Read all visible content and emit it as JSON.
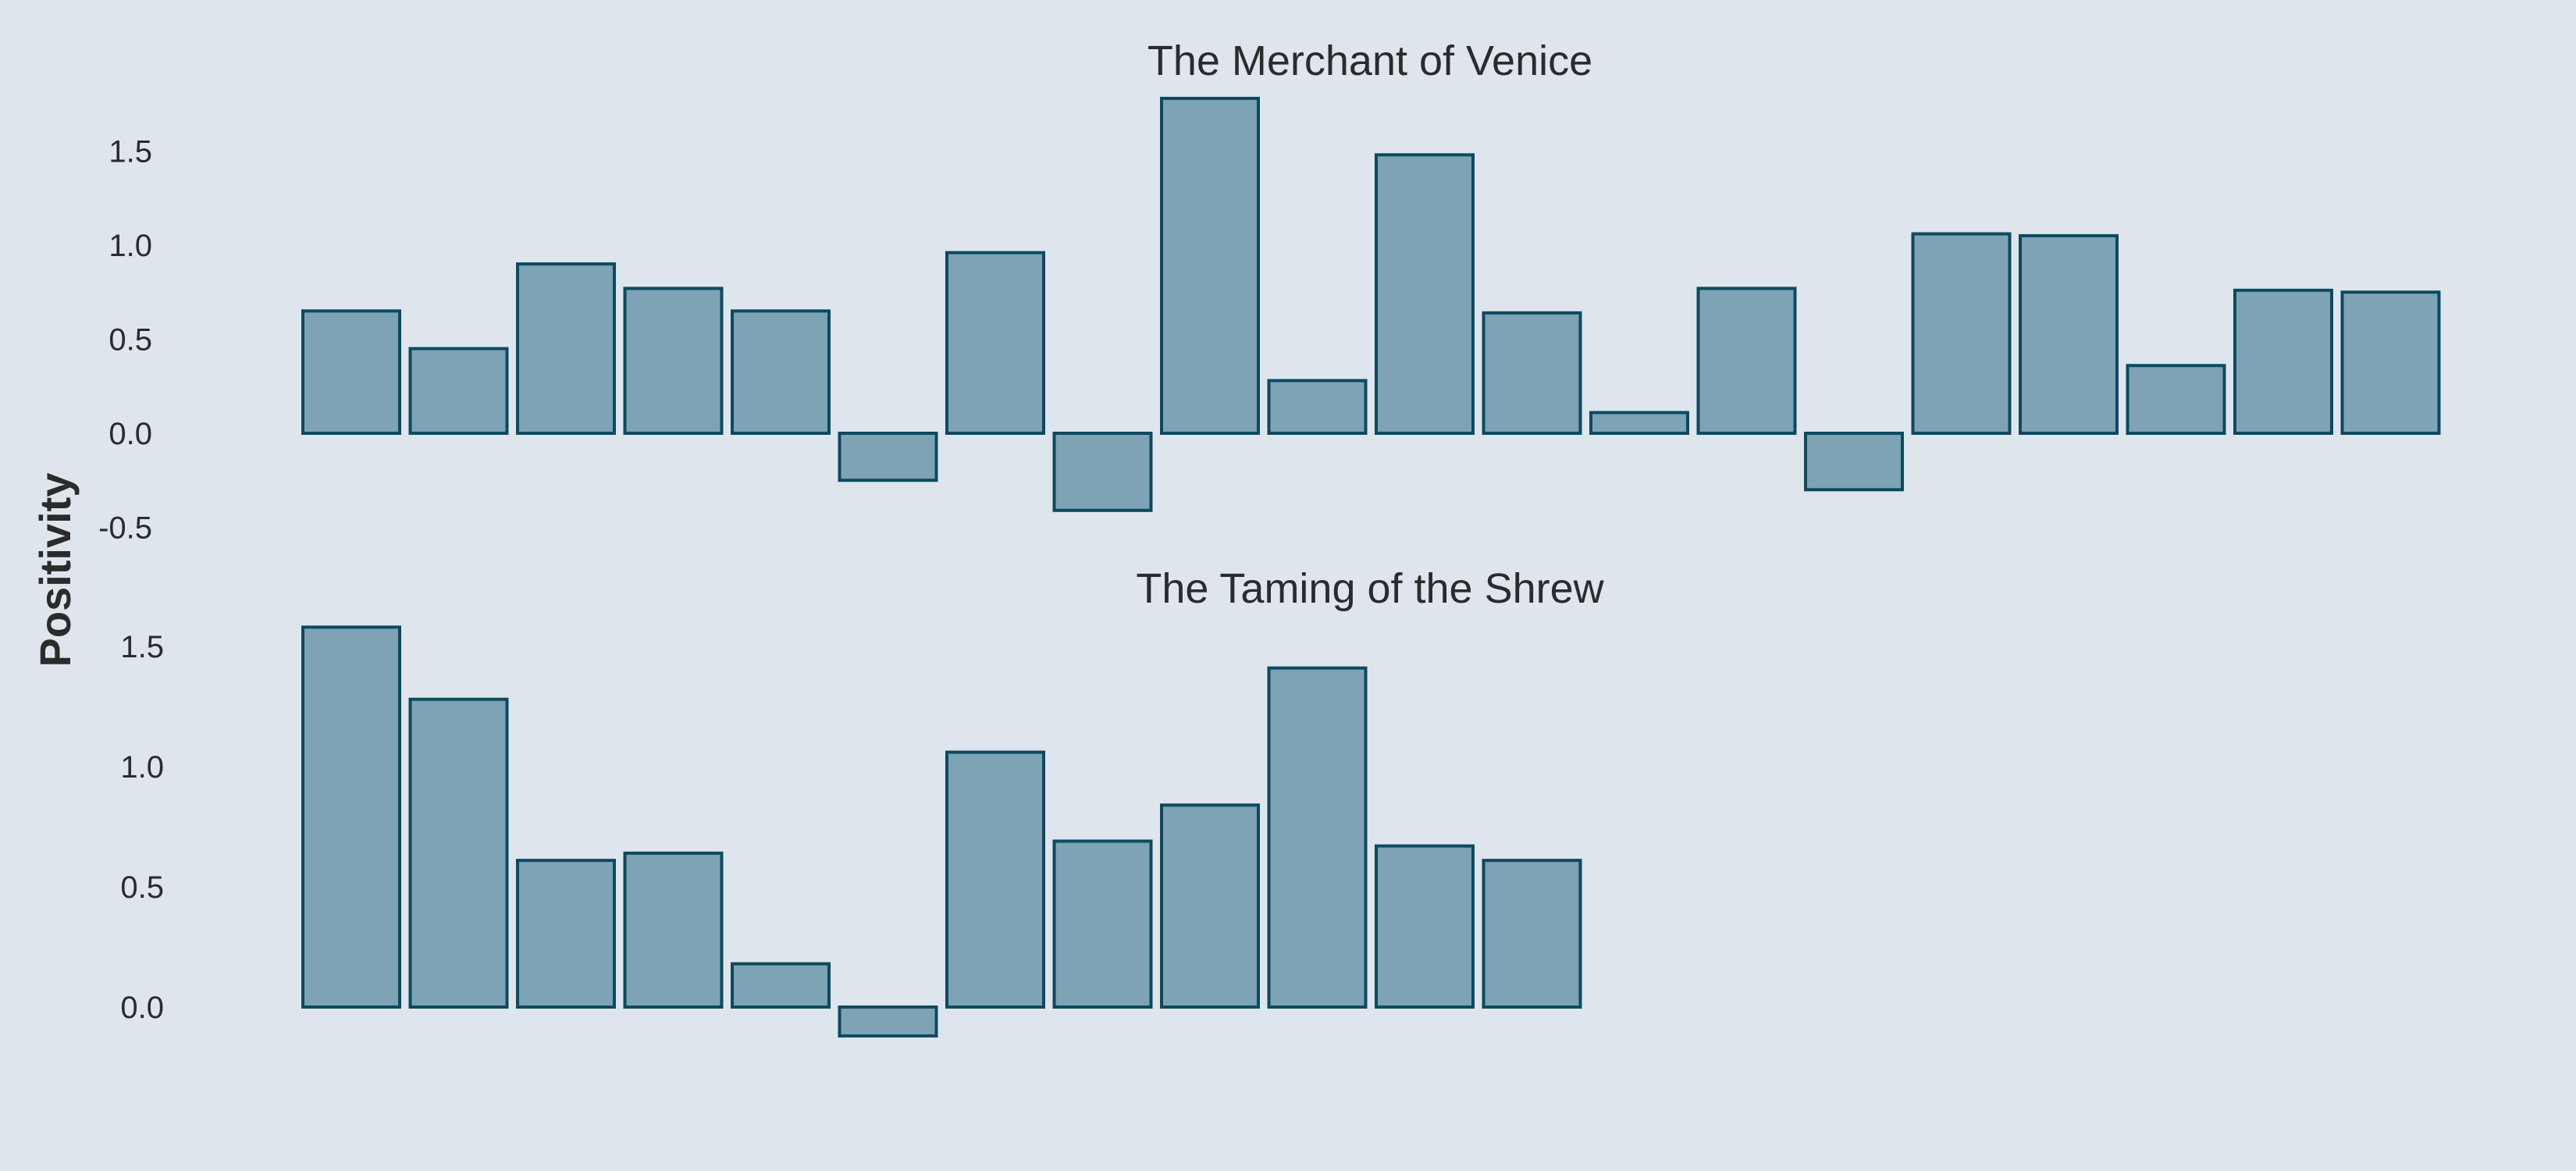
{
  "colors": {
    "background": "#dfe5ec",
    "bar_fill": "#7da3b4",
    "bar_edge": "#0c4a60",
    "text": "#2b2b2b"
  },
  "ylabel": "Positivity",
  "chart_data": [
    {
      "type": "bar",
      "title": "The Merchant of Venice",
      "ylabel": "Positivity",
      "xlabel": "",
      "ylim": [
        -0.55,
        1.78
      ],
      "yticks": [
        -0.5,
        0.0,
        0.5,
        1.0,
        1.5
      ],
      "ytick_labels": [
        "-0.5",
        "0.0",
        "0.5",
        "1.0",
        "1.5"
      ],
      "grid": false,
      "values": [
        0.65,
        0.45,
        0.9,
        0.77,
        0.65,
        -0.25,
        0.96,
        -0.41,
        1.78,
        0.28,
        1.48,
        0.64,
        0.11,
        0.77,
        -0.3,
        1.06,
        1.05,
        0.36,
        0.76,
        0.75
      ]
    },
    {
      "type": "bar",
      "title": "The Taming of the Shrew",
      "ylabel": "Positivity",
      "xlabel": "",
      "ylim": [
        -0.12,
        1.58
      ],
      "yticks": [
        0.0,
        0.5,
        1.0,
        1.5
      ],
      "ytick_labels": [
        "0.0",
        "0.5",
        "1.0",
        "1.5"
      ],
      "grid": false,
      "values": [
        1.58,
        1.28,
        0.61,
        0.64,
        0.18,
        -0.12,
        1.06,
        0.69,
        0.84,
        1.41,
        0.67,
        0.61
      ]
    }
  ]
}
